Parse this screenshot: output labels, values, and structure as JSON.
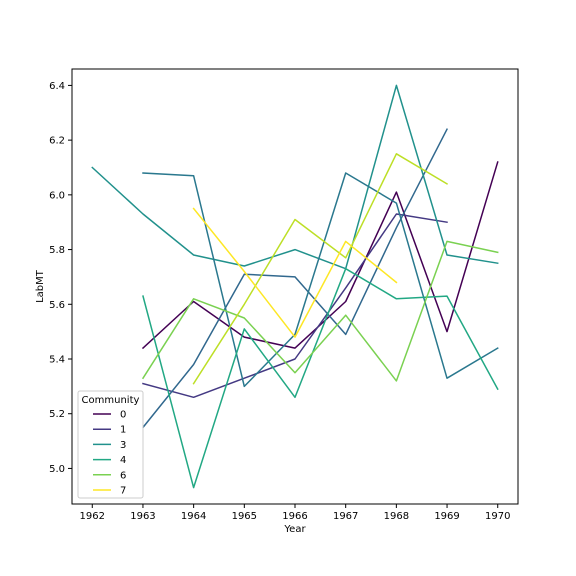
{
  "chart_data": {
    "type": "line",
    "title": "",
    "xlabel": "Year",
    "ylabel": "LabMT",
    "xlim": [
      1961.6,
      1970.4
    ],
    "ylim": [
      4.87,
      6.46
    ],
    "x_ticks": [
      "1962",
      "1963",
      "1964",
      "1965",
      "1966",
      "1967",
      "1968",
      "1969",
      "1970"
    ],
    "y_ticks": [
      "5.0",
      "5.2",
      "5.4",
      "5.6",
      "5.8",
      "6.0",
      "6.2",
      "6.4"
    ],
    "grid": false,
    "legend": {
      "title": "Community",
      "placement": "lower-left"
    },
    "series": [
      {
        "name": "0",
        "color": "#440154",
        "x": [
          1963,
          1964,
          1965,
          1966,
          1967,
          1968,
          1969,
          1970
        ],
        "y": [
          5.44,
          5.61,
          5.48,
          5.44,
          5.61,
          6.01,
          5.5,
          6.12
        ]
      },
      {
        "name": "1",
        "color": "#443983",
        "x": [
          1963,
          1964,
          1965,
          1966,
          1967,
          1968,
          1969
        ],
        "y": [
          5.31,
          5.26,
          5.33,
          5.4,
          5.66,
          5.93,
          5.9
        ]
      },
      {
        "name": "",
        "color": "#31688e",
        "x": [
          1963,
          1964,
          1965,
          1966,
          1967,
          1968,
          1969
        ],
        "y": [
          5.15,
          5.38,
          5.71,
          5.7,
          5.49,
          5.88,
          6.24
        ]
      },
      {
        "name": "3",
        "color": "#21918c",
        "x": [
          1962,
          1963,
          1964,
          1965,
          1966,
          1967,
          1968,
          1969,
          1970
        ],
        "y": [
          6.1,
          5.93,
          5.78,
          5.74,
          5.8,
          5.73,
          6.4,
          5.78,
          5.75
        ]
      },
      {
        "name": "",
        "color": "#2a788e",
        "x": [
          1963,
          1964,
          1965,
          1966,
          1967,
          1968,
          1969,
          1970
        ],
        "y": [
          6.08,
          6.07,
          5.3,
          5.49,
          6.08,
          5.97,
          5.33,
          5.44
        ]
      },
      {
        "name": "4",
        "color": "#22a884",
        "x": [
          1963,
          1964,
          1965,
          1966,
          1967,
          1968,
          1969,
          1970
        ],
        "y": [
          5.63,
          4.93,
          5.51,
          5.26,
          5.73,
          5.62,
          5.63,
          5.29
        ]
      },
      {
        "name": "6",
        "color": "#7ad151",
        "x": [
          1963,
          1964,
          1965,
          1966,
          1967,
          1968,
          1969,
          1970
        ],
        "y": [
          5.33,
          5.62,
          5.55,
          5.35,
          5.56,
          5.32,
          5.83,
          5.79
        ]
      },
      {
        "name": "",
        "color": "#bddf26",
        "x": [
          1964,
          1965,
          1966,
          1967,
          1968,
          1969
        ],
        "y": [
          5.31,
          5.6,
          5.91,
          5.77,
          6.15,
          6.04
        ]
      },
      {
        "name": "7",
        "color": "#fde725",
        "x": [
          1964,
          1965,
          1966,
          1967,
          1968
        ],
        "y": [
          5.95,
          5.72,
          5.48,
          5.83,
          5.68
        ]
      }
    ]
  }
}
